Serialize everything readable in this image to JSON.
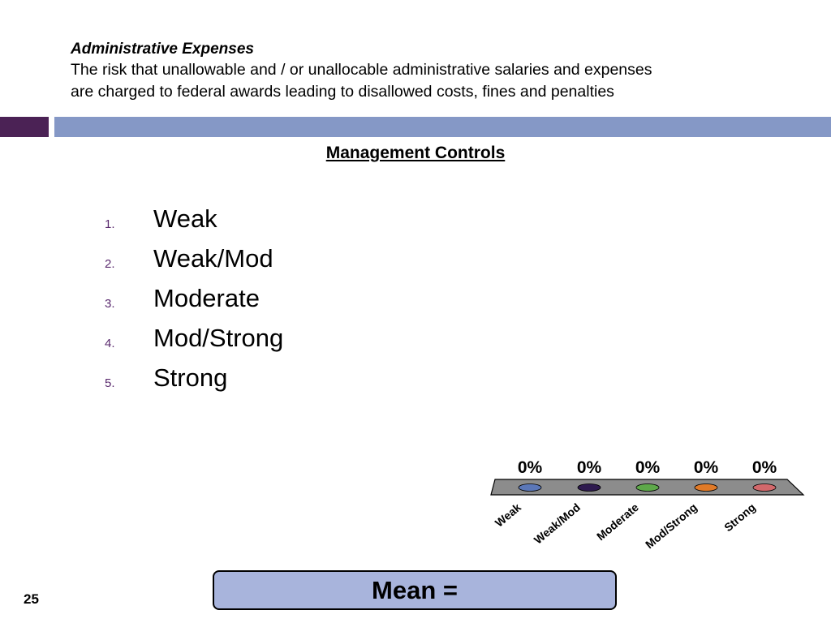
{
  "slide": {
    "subtitle": "Administrative Expenses",
    "description_line1": "The risk that unallowable and / or unallocable administrative salaries and expenses",
    "description_line2": "are charged to federal awards leading to disallowed costs, fines and penalties",
    "section_title": "Management Controls",
    "page_number": "25"
  },
  "options": [
    {
      "num": "1.",
      "label": "Weak"
    },
    {
      "num": "2.",
      "label": "Weak/Mod"
    },
    {
      "num": "3.",
      "label": "Moderate"
    },
    {
      "num": "4.",
      "label": "Mod/Strong"
    },
    {
      "num": "5.",
      "label": "Strong"
    }
  ],
  "chart_data": {
    "type": "bar",
    "categories": [
      "Weak",
      "Weak/Mod",
      "Moderate",
      "Mod/Strong",
      "Strong"
    ],
    "values": [
      0,
      0,
      0,
      0,
      0
    ],
    "value_labels": [
      "0%",
      "0%",
      "0%",
      "0%",
      "0%"
    ],
    "ylim": [
      0,
      100
    ],
    "colors": [
      "#5b77b8",
      "#2e1a4f",
      "#5ea84a",
      "#e07a28",
      "#d2686b"
    ],
    "base_color": "#8c8c8c"
  },
  "mean": {
    "label": "Mean ="
  }
}
